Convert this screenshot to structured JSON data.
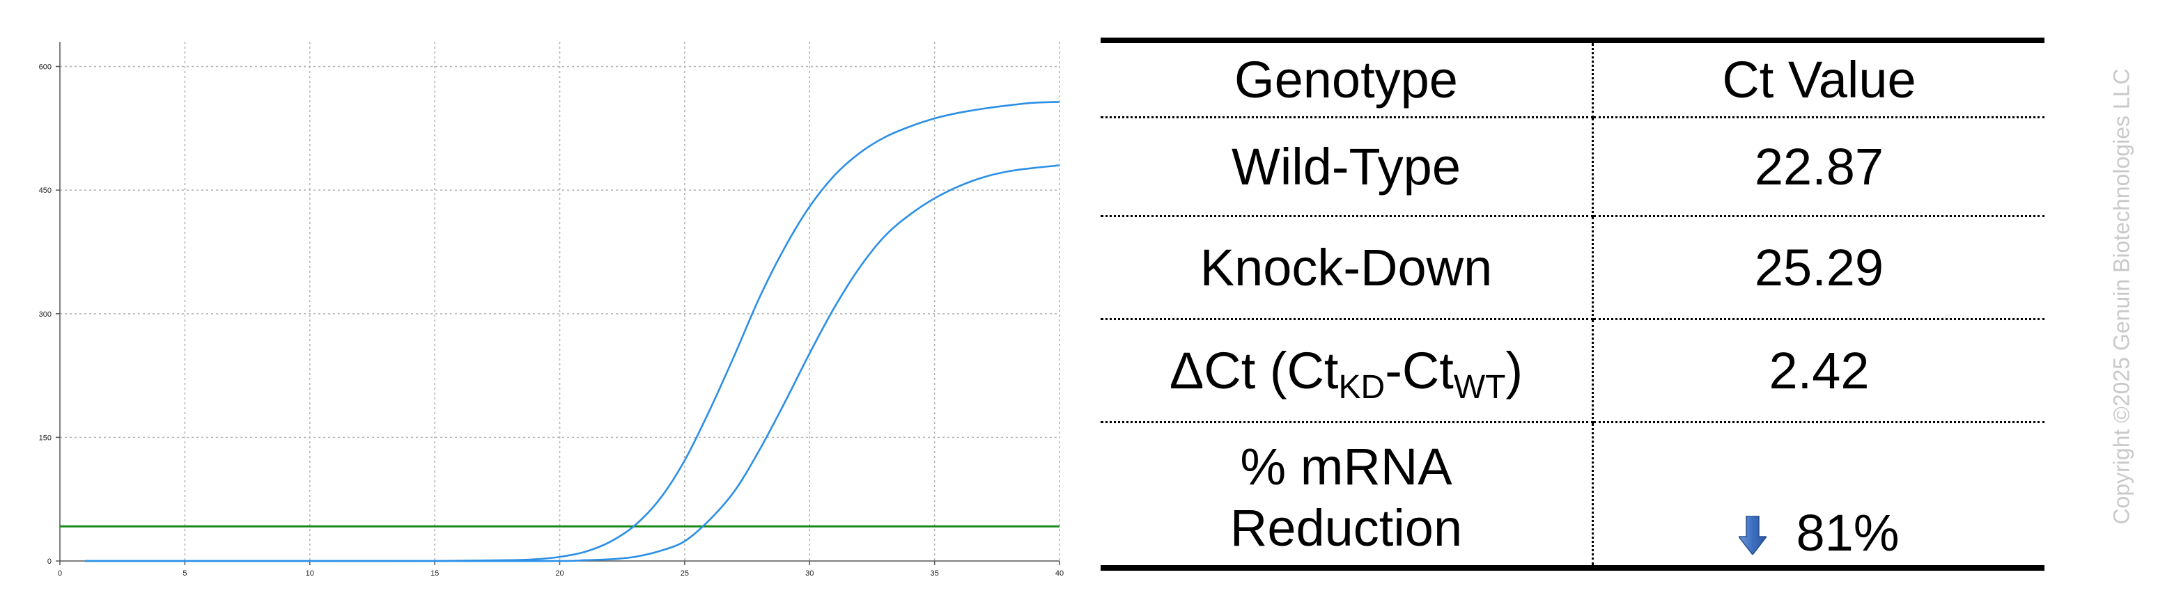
{
  "chart_data": {
    "type": "line",
    "title": "",
    "xlabel": "",
    "ylabel": "",
    "xlim": [
      0,
      40
    ],
    "ylim": [
      0,
      630
    ],
    "x_ticks": [
      0,
      5,
      10,
      15,
      20,
      25,
      30,
      35,
      40
    ],
    "y_ticks": [
      0,
      150,
      300,
      450,
      600
    ],
    "grid": true,
    "legend": "none",
    "threshold": {
      "y": 42,
      "color": "#1a8a1a"
    },
    "series_color": "#2b8fe6",
    "series": [
      {
        "x": [
          1,
          5,
          10,
          15,
          18,
          19,
          20,
          21,
          22,
          23,
          24,
          25,
          26,
          27,
          28,
          29,
          30,
          31,
          32,
          33,
          34,
          35,
          36,
          37,
          38,
          39,
          40
        ],
        "y": [
          0,
          0,
          0,
          0,
          1,
          2,
          5,
          11,
          23,
          43,
          75,
          122,
          183,
          250,
          320,
          380,
          430,
          468,
          495,
          514,
          527,
          537,
          544,
          549,
          553,
          556,
          557
        ]
      },
      {
        "x": [
          1,
          5,
          10,
          15,
          20,
          21,
          22,
          23,
          24,
          25,
          26,
          27,
          28,
          29,
          30,
          31,
          32,
          33,
          34,
          35,
          36,
          37,
          38,
          39,
          40
        ],
        "y": [
          0,
          0,
          0,
          0,
          0,
          1,
          2,
          5,
          12,
          24,
          50,
          85,
          135,
          192,
          252,
          308,
          356,
          394,
          420,
          440,
          455,
          466,
          473,
          477,
          480
        ]
      }
    ]
  },
  "table": {
    "header": {
      "genotype": "Genotype",
      "ct_value": "Ct Value"
    },
    "rows": {
      "wild_type": {
        "label": "Wild-Type",
        "value": "22.87"
      },
      "knock_down": {
        "label": "Knock-Down",
        "value": "25.29"
      },
      "delta_ct": {
        "prefix": "ΔCt (Ct",
        "sub1": "KD",
        "mid": "-Ct",
        "sub2": "WT",
        "suffix": ")",
        "value": "2.42"
      },
      "mrna_reduction": {
        "label_line1": "% mRNA",
        "label_line2": "Reduction",
        "value": "81%",
        "arrow_icon": "down-arrow-icon"
      }
    }
  },
  "watermark": {
    "text": "Copyright ©2025 Genuin Biotechnologies LLC",
    "color": "#c9c9c9"
  }
}
